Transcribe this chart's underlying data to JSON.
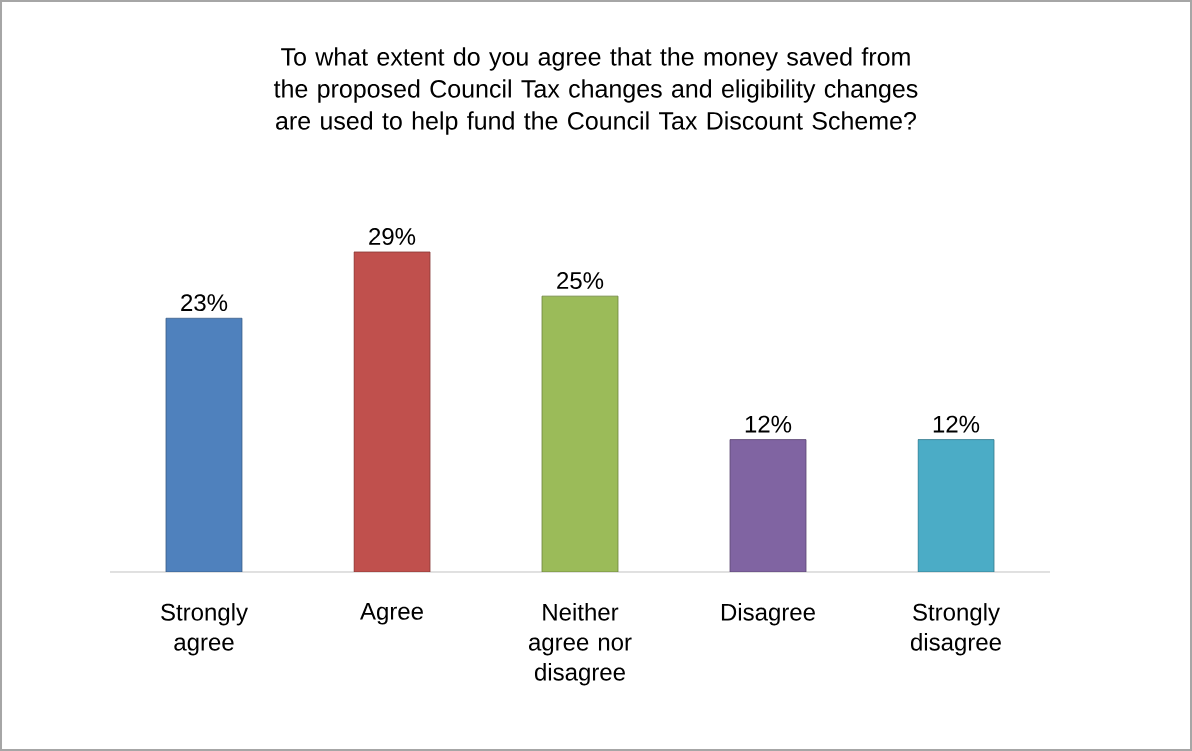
{
  "chart_data": {
    "type": "bar",
    "title": "To what extent do you agree that the money saved from the proposed Council Tax changes and eligibility changes are used to help fund the Council Tax Discount Scheme?",
    "categories": [
      "Strongly agree",
      "Agree",
      "Neither agree nor disagree",
      "Disagree",
      "Strongly disagree"
    ],
    "values": [
      23,
      29,
      25,
      12,
      12
    ],
    "value_labels": [
      "23%",
      "29%",
      "25%",
      "12%",
      "12%"
    ],
    "colors": [
      "#4f81bd",
      "#c0504d",
      "#9bbb59",
      "#8064a2",
      "#4bacc6"
    ]
  }
}
